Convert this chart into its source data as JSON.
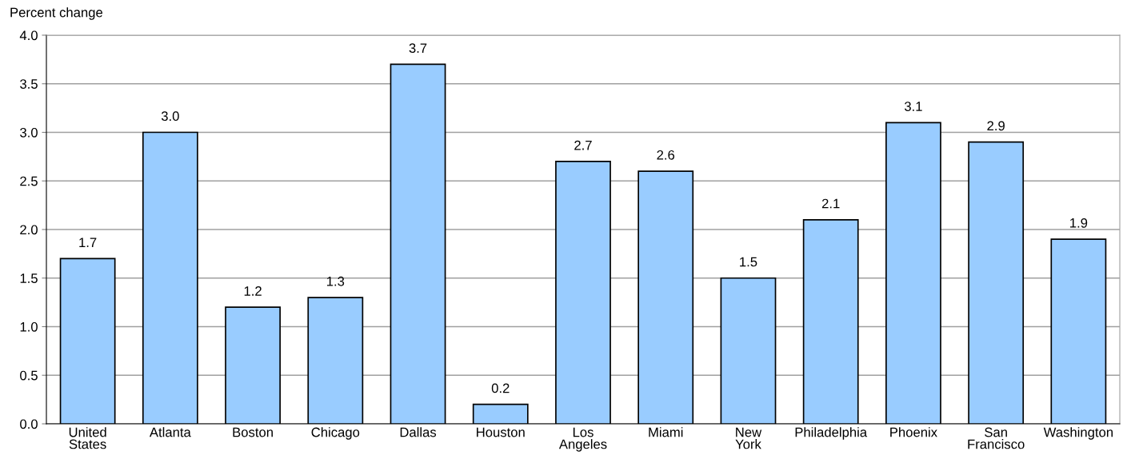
{
  "chart_data": {
    "type": "bar",
    "ylabel": "Percent change",
    "categories": [
      "United\nStates",
      "Atlanta",
      "Boston",
      "Chicago",
      "Dallas",
      "Houston",
      "Los\nAngeles",
      "Miami",
      "New\nYork",
      "Philadelphia",
      "Phoenix",
      "San\nFrancisco",
      "Washington"
    ],
    "values": [
      1.7,
      3.0,
      1.2,
      1.3,
      3.7,
      0.2,
      2.7,
      2.6,
      1.5,
      2.1,
      3.1,
      2.9,
      1.9
    ],
    "value_labels": [
      "1.7",
      "3.0",
      "1.2",
      "1.3",
      "3.7",
      "0.2",
      "2.7",
      "2.6",
      "1.5",
      "2.1",
      "3.1",
      "2.9",
      "1.9"
    ],
    "color": "#99ccff",
    "ylim": [
      0,
      4
    ],
    "yticks": [
      {
        "value": 0,
        "label": "0.0"
      },
      {
        "value": 0.5,
        "label": "0.5"
      },
      {
        "value": 1,
        "label": "1.0"
      },
      {
        "value": 1.5,
        "label": "1.5"
      },
      {
        "value": 2,
        "label": "2.0"
      },
      {
        "value": 2.5,
        "label": "2.5"
      },
      {
        "value": 3,
        "label": "3.0"
      },
      {
        "value": 3.5,
        "label": "3.5"
      },
      {
        "value": 4,
        "label": "4.0"
      }
    ],
    "grid": "y"
  }
}
